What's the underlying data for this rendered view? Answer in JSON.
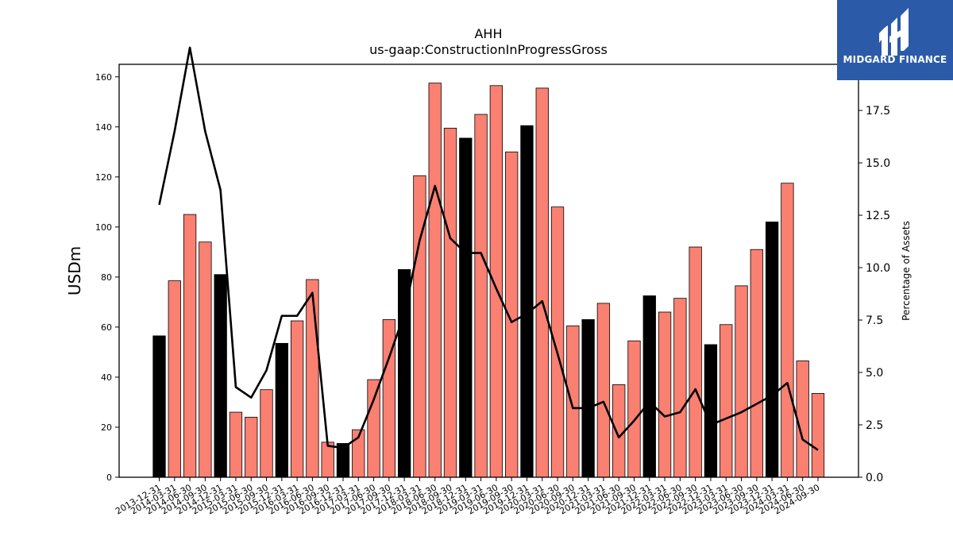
{
  "chart_data": {
    "type": "bar",
    "title": "AHH",
    "subtitle": "us-gaap:ConstructionInProgressGross",
    "ylabel": "USDm",
    "y2label": "Percentage of Assets",
    "ylim": [
      0,
      165
    ],
    "y2lim": [
      0,
      19.7
    ],
    "yticks": [
      0,
      20,
      40,
      60,
      80,
      100,
      120,
      140,
      160
    ],
    "y2ticks": [
      0.0,
      2.5,
      5.0,
      7.5,
      10.0,
      12.5,
      15.0,
      17.5
    ],
    "categories": [
      "2013-12-31",
      "2014-03-31",
      "2014-06-30",
      "2014-09-30",
      "2014-12-31",
      "2015-03-31",
      "2015-06-30",
      "2015-09-30",
      "2015-12-31",
      "2016-03-31",
      "2016-06-30",
      "2016-09-30",
      "2016-12-31",
      "2017-03-31",
      "2017-06-30",
      "2017-09-30",
      "2017-12-31",
      "2018-03-31",
      "2018-06-30",
      "2018-09-30",
      "2018-12-31",
      "2019-03-31",
      "2019-06-30",
      "2019-09-30",
      "2019-12-31",
      "2020-03-31",
      "2020-06-30",
      "2020-09-30",
      "2020-12-31",
      "2021-03-31",
      "2021-06-30",
      "2021-09-30",
      "2021-12-31",
      "2022-03-31",
      "2022-06-30",
      "2022-09-30",
      "2022-12-31",
      "2023-03-31",
      "2023-06-30",
      "2023-09-30",
      "2023-12-31",
      "2024-03-31",
      "2024-06-30",
      "2024-09-30"
    ],
    "series": [
      {
        "kind": "bar",
        "values": [
          56.5,
          78.5,
          105,
          94,
          81,
          26,
          24,
          35,
          53.5,
          62.5,
          79,
          14,
          13.5,
          19,
          39,
          63,
          83,
          120.5,
          157.5,
          139.5,
          135.5,
          145,
          156.5,
          130,
          140.5,
          155.5,
          108,
          60.5,
          63,
          69.5,
          37,
          54.5,
          72.5,
          66,
          71.5,
          92,
          53,
          61,
          76.5,
          91,
          102,
          117.5,
          46.5,
          33.5
        ],
        "highlight_year_end": true
      },
      {
        "kind": "line",
        "axis": "right",
        "values": [
          13.0,
          16.5,
          20.5,
          16.5,
          13.7,
          4.3,
          3.8,
          5.1,
          7.7,
          7.7,
          8.8,
          1.5,
          1.4,
          1.9,
          3.7,
          5.7,
          7.8,
          11.3,
          13.9,
          11.4,
          10.7,
          10.7,
          9.0,
          7.4,
          7.8,
          8.4,
          5.9,
          3.3,
          3.3,
          3.6,
          1.9,
          2.7,
          3.6,
          2.9,
          3.1,
          4.2,
          2.5,
          2.8,
          3.1,
          3.5,
          3.9,
          4.5,
          1.8,
          1.3
        ]
      }
    ],
    "colors": {
      "bar": "#fa8072",
      "bar_highlight": "#000000",
      "line": "#000000"
    }
  },
  "logo": {
    "text": "MIDGARD FINANCE",
    "bg": "#2b5aa8"
  }
}
